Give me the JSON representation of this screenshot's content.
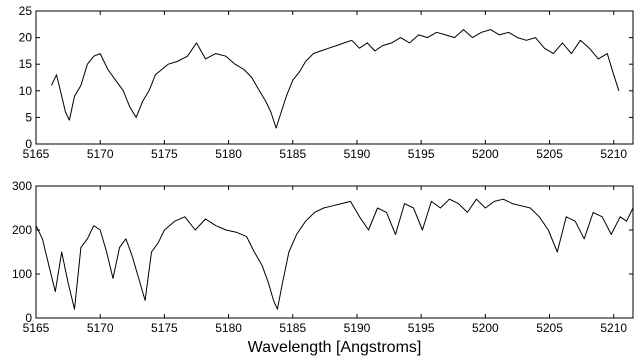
{
  "chart_data": [
    {
      "type": "line",
      "title": "",
      "xlabel": "",
      "ylabel": "",
      "xlim": [
        5165,
        5211.5
      ],
      "ylim": [
        0,
        25
      ],
      "x_ticks": [
        "5165",
        "5170",
        "5175",
        "5180",
        "5185",
        "5190",
        "5195",
        "5200",
        "5205",
        "5210"
      ],
      "y_ticks": [
        "0",
        "5",
        "10",
        "15",
        "20",
        "25"
      ],
      "grid": false,
      "series": [
        {
          "x": [
            5166.2,
            5166.6,
            5167.0,
            5167.3,
            5167.6,
            5168.0,
            5168.5,
            5169.0,
            5169.5,
            5170.0,
            5170.6,
            5171.2,
            5171.8,
            5172.3,
            5172.8,
            5173.3,
            5173.8,
            5174.3,
            5174.8,
            5175.3,
            5176.0,
            5176.8,
            5177.5,
            5178.2,
            5179.0,
            5179.8,
            5180.5,
            5181.2,
            5181.8,
            5182.4,
            5182.9,
            5183.3,
            5183.7,
            5184.1,
            5184.5,
            5185.0,
            5185.5,
            5186.0,
            5186.6,
            5187.2,
            5187.8,
            5188.4,
            5189.0,
            5189.6,
            5190.2,
            5190.8,
            5191.4,
            5192.0,
            5192.7,
            5193.4,
            5194.1,
            5194.8,
            5195.5,
            5196.2,
            5196.9,
            5197.6,
            5198.3,
            5199.0,
            5199.7,
            5200.4,
            5201.1,
            5201.8,
            5202.5,
            5203.2,
            5203.9,
            5204.6,
            5205.3,
            5206.0,
            5206.7,
            5207.4,
            5208.1,
            5208.8,
            5209.5,
            5210.0,
            5210.4
          ],
          "y": [
            11,
            13,
            9,
            6,
            4.5,
            9,
            11,
            15,
            16.5,
            17,
            14,
            12,
            10,
            7,
            5,
            8,
            10,
            13,
            14,
            15,
            15.5,
            16.5,
            19,
            16,
            17,
            16.5,
            15,
            14,
            12.5,
            10,
            8,
            6,
            3,
            6,
            9,
            12,
            13.5,
            15.5,
            17,
            17.5,
            18,
            18.5,
            19,
            19.5,
            18,
            19,
            17.5,
            18.5,
            19,
            20,
            19,
            20.5,
            20,
            21,
            20.5,
            20,
            21.5,
            20,
            21,
            21.5,
            20.5,
            21,
            20,
            19.5,
            20,
            18,
            17,
            19,
            17,
            19.5,
            18,
            16,
            17,
            13,
            10
          ]
        }
      ]
    },
    {
      "type": "line",
      "title": "",
      "xlabel": "Wavelength [Angstroms]",
      "ylabel": "",
      "xlim": [
        5165,
        5211.5
      ],
      "ylim": [
        0,
        300
      ],
      "x_ticks": [
        "5165",
        "5170",
        "5175",
        "5180",
        "5185",
        "5190",
        "5195",
        "5200",
        "5205",
        "5210"
      ],
      "y_ticks": [
        "0",
        "100",
        "200",
        "300"
      ],
      "grid": false,
      "series": [
        {
          "x": [
            5165.0,
            5165.5,
            5166.0,
            5166.5,
            5167.0,
            5167.5,
            5168.0,
            5168.5,
            5169.0,
            5169.5,
            5170.0,
            5170.5,
            5171.0,
            5171.5,
            5172.0,
            5172.5,
            5173.0,
            5173.5,
            5174.0,
            5174.5,
            5175.0,
            5175.8,
            5176.6,
            5177.4,
            5178.2,
            5179.0,
            5179.8,
            5180.6,
            5181.4,
            5182.0,
            5182.6,
            5183.1,
            5183.5,
            5183.8,
            5184.2,
            5184.7,
            5185.3,
            5186.0,
            5186.7,
            5187.4,
            5188.1,
            5188.8,
            5189.5,
            5190.2,
            5190.9,
            5191.6,
            5192.3,
            5193.0,
            5193.7,
            5194.4,
            5195.1,
            5195.8,
            5196.5,
            5197.2,
            5197.9,
            5198.6,
            5199.3,
            5200.0,
            5200.7,
            5201.4,
            5202.1,
            5202.8,
            5203.5,
            5204.2,
            5204.9,
            5205.6,
            5206.3,
            5207.0,
            5207.7,
            5208.4,
            5209.1,
            5209.8,
            5210.5,
            5211.0,
            5211.5
          ],
          "y": [
            210,
            180,
            120,
            60,
            150,
            80,
            20,
            160,
            180,
            210,
            200,
            150,
            90,
            160,
            180,
            140,
            90,
            40,
            150,
            170,
            200,
            220,
            230,
            200,
            225,
            210,
            200,
            195,
            185,
            150,
            120,
            80,
            40,
            20,
            80,
            150,
            190,
            220,
            240,
            250,
            255,
            260,
            265,
            230,
            200,
            250,
            240,
            190,
            260,
            250,
            200,
            265,
            250,
            270,
            260,
            240,
            270,
            250,
            265,
            270,
            260,
            255,
            250,
            230,
            200,
            150,
            230,
            220,
            180,
            240,
            230,
            190,
            230,
            220,
            250
          ]
        }
      ]
    }
  ]
}
